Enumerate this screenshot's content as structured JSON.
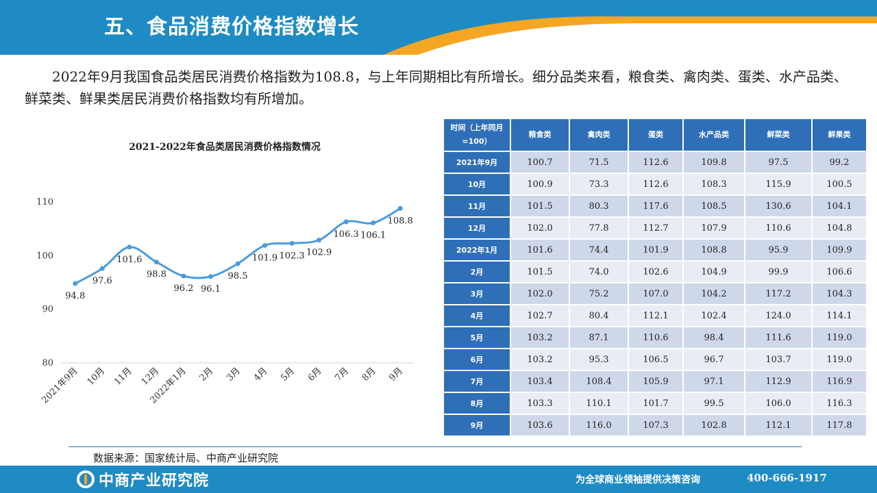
{
  "header": {
    "title": "五、食品消费价格指数增长"
  },
  "intro": "2022年9月我国食品类居民消费价格指数为108.8，与上年同期相比有所增长。细分品类来看，粮食类、禽肉类、蛋类、水产品类、鲜菜类、鲜果类居民消费价格指数均有所增加。",
  "chart_data": {
    "type": "line",
    "title": "2021-2022年食品类居民消费价格指数情况",
    "categories": [
      "2021年9月",
      "10月",
      "11月",
      "12月",
      "2022年1月",
      "2月",
      "3月",
      "4月",
      "5月",
      "6月",
      "7月",
      "8月",
      "9月"
    ],
    "values": [
      94.8,
      97.6,
      101.6,
      98.8,
      96.2,
      96.1,
      98.5,
      101.9,
      102.3,
      102.9,
      106.3,
      106.1,
      108.8
    ],
    "labels": [
      "94.8",
      "97.6",
      "101.6",
      "98.8",
      "96.2",
      "96.1",
      "98.5",
      "101.9",
      "102.3",
      "102.9",
      "106.3",
      "106.1",
      "108.8"
    ],
    "yticks": [
      "80",
      "90",
      "100",
      "110"
    ],
    "ylim": [
      80,
      110
    ],
    "grid": false,
    "color": "#4a9be0"
  },
  "table": {
    "headers": [
      "时间（上年同月=100）",
      "粮食类",
      "禽肉类",
      "蛋类",
      "水产品类",
      "鲜菜类",
      "鲜果类"
    ],
    "rows": [
      [
        "2021年9月",
        "100.7",
        "71.5",
        "112.6",
        "109.8",
        "97.5",
        "99.2"
      ],
      [
        "10月",
        "100.9",
        "73.3",
        "112.6",
        "108.3",
        "115.9",
        "100.5"
      ],
      [
        "11月",
        "101.5",
        "80.3",
        "117.6",
        "108.5",
        "130.6",
        "104.1"
      ],
      [
        "12月",
        "102.0",
        "77.8",
        "112.7",
        "107.9",
        "110.6",
        "104.8"
      ],
      [
        "2022年1月",
        "101.6",
        "74.4",
        "101.9",
        "108.8",
        "95.9",
        "109.9"
      ],
      [
        "2月",
        "101.5",
        "74.0",
        "102.6",
        "104.9",
        "99.9",
        "106.6"
      ],
      [
        "3月",
        "102.0",
        "75.2",
        "107.0",
        "104.2",
        "117.2",
        "104.3"
      ],
      [
        "4月",
        "102.7",
        "80.4",
        "112.1",
        "102.4",
        "124.0",
        "114.1"
      ],
      [
        "5月",
        "103.2",
        "87.1",
        "110.6",
        "98.4",
        "111.6",
        "119.0"
      ],
      [
        "6月",
        "103.2",
        "95.3",
        "106.5",
        "96.7",
        "103.7",
        "119.0"
      ],
      [
        "7月",
        "103.4",
        "108.4",
        "105.9",
        "97.1",
        "112.9",
        "116.9"
      ],
      [
        "8月",
        "103.3",
        "110.1",
        "101.7",
        "99.5",
        "106.0",
        "116.3"
      ],
      [
        "9月",
        "103.6",
        "116.0",
        "107.3",
        "102.8",
        "112.1",
        "117.8"
      ]
    ]
  },
  "source": "数据来源：国家统计局、中商产业研究院",
  "footer": {
    "logo_text": "中商产业研究院",
    "slogan": "为全球商业领袖提供决策咨询",
    "phone": "400-666-1917"
  },
  "colors": {
    "header_bg": "#1f8bc4",
    "accent_orange": "#f5a623",
    "table_head_bg": "#2f6fb8",
    "table_row_dark": "#cfd8ea",
    "table_row_light": "#e8ecf5",
    "line": "#4a9be0"
  }
}
